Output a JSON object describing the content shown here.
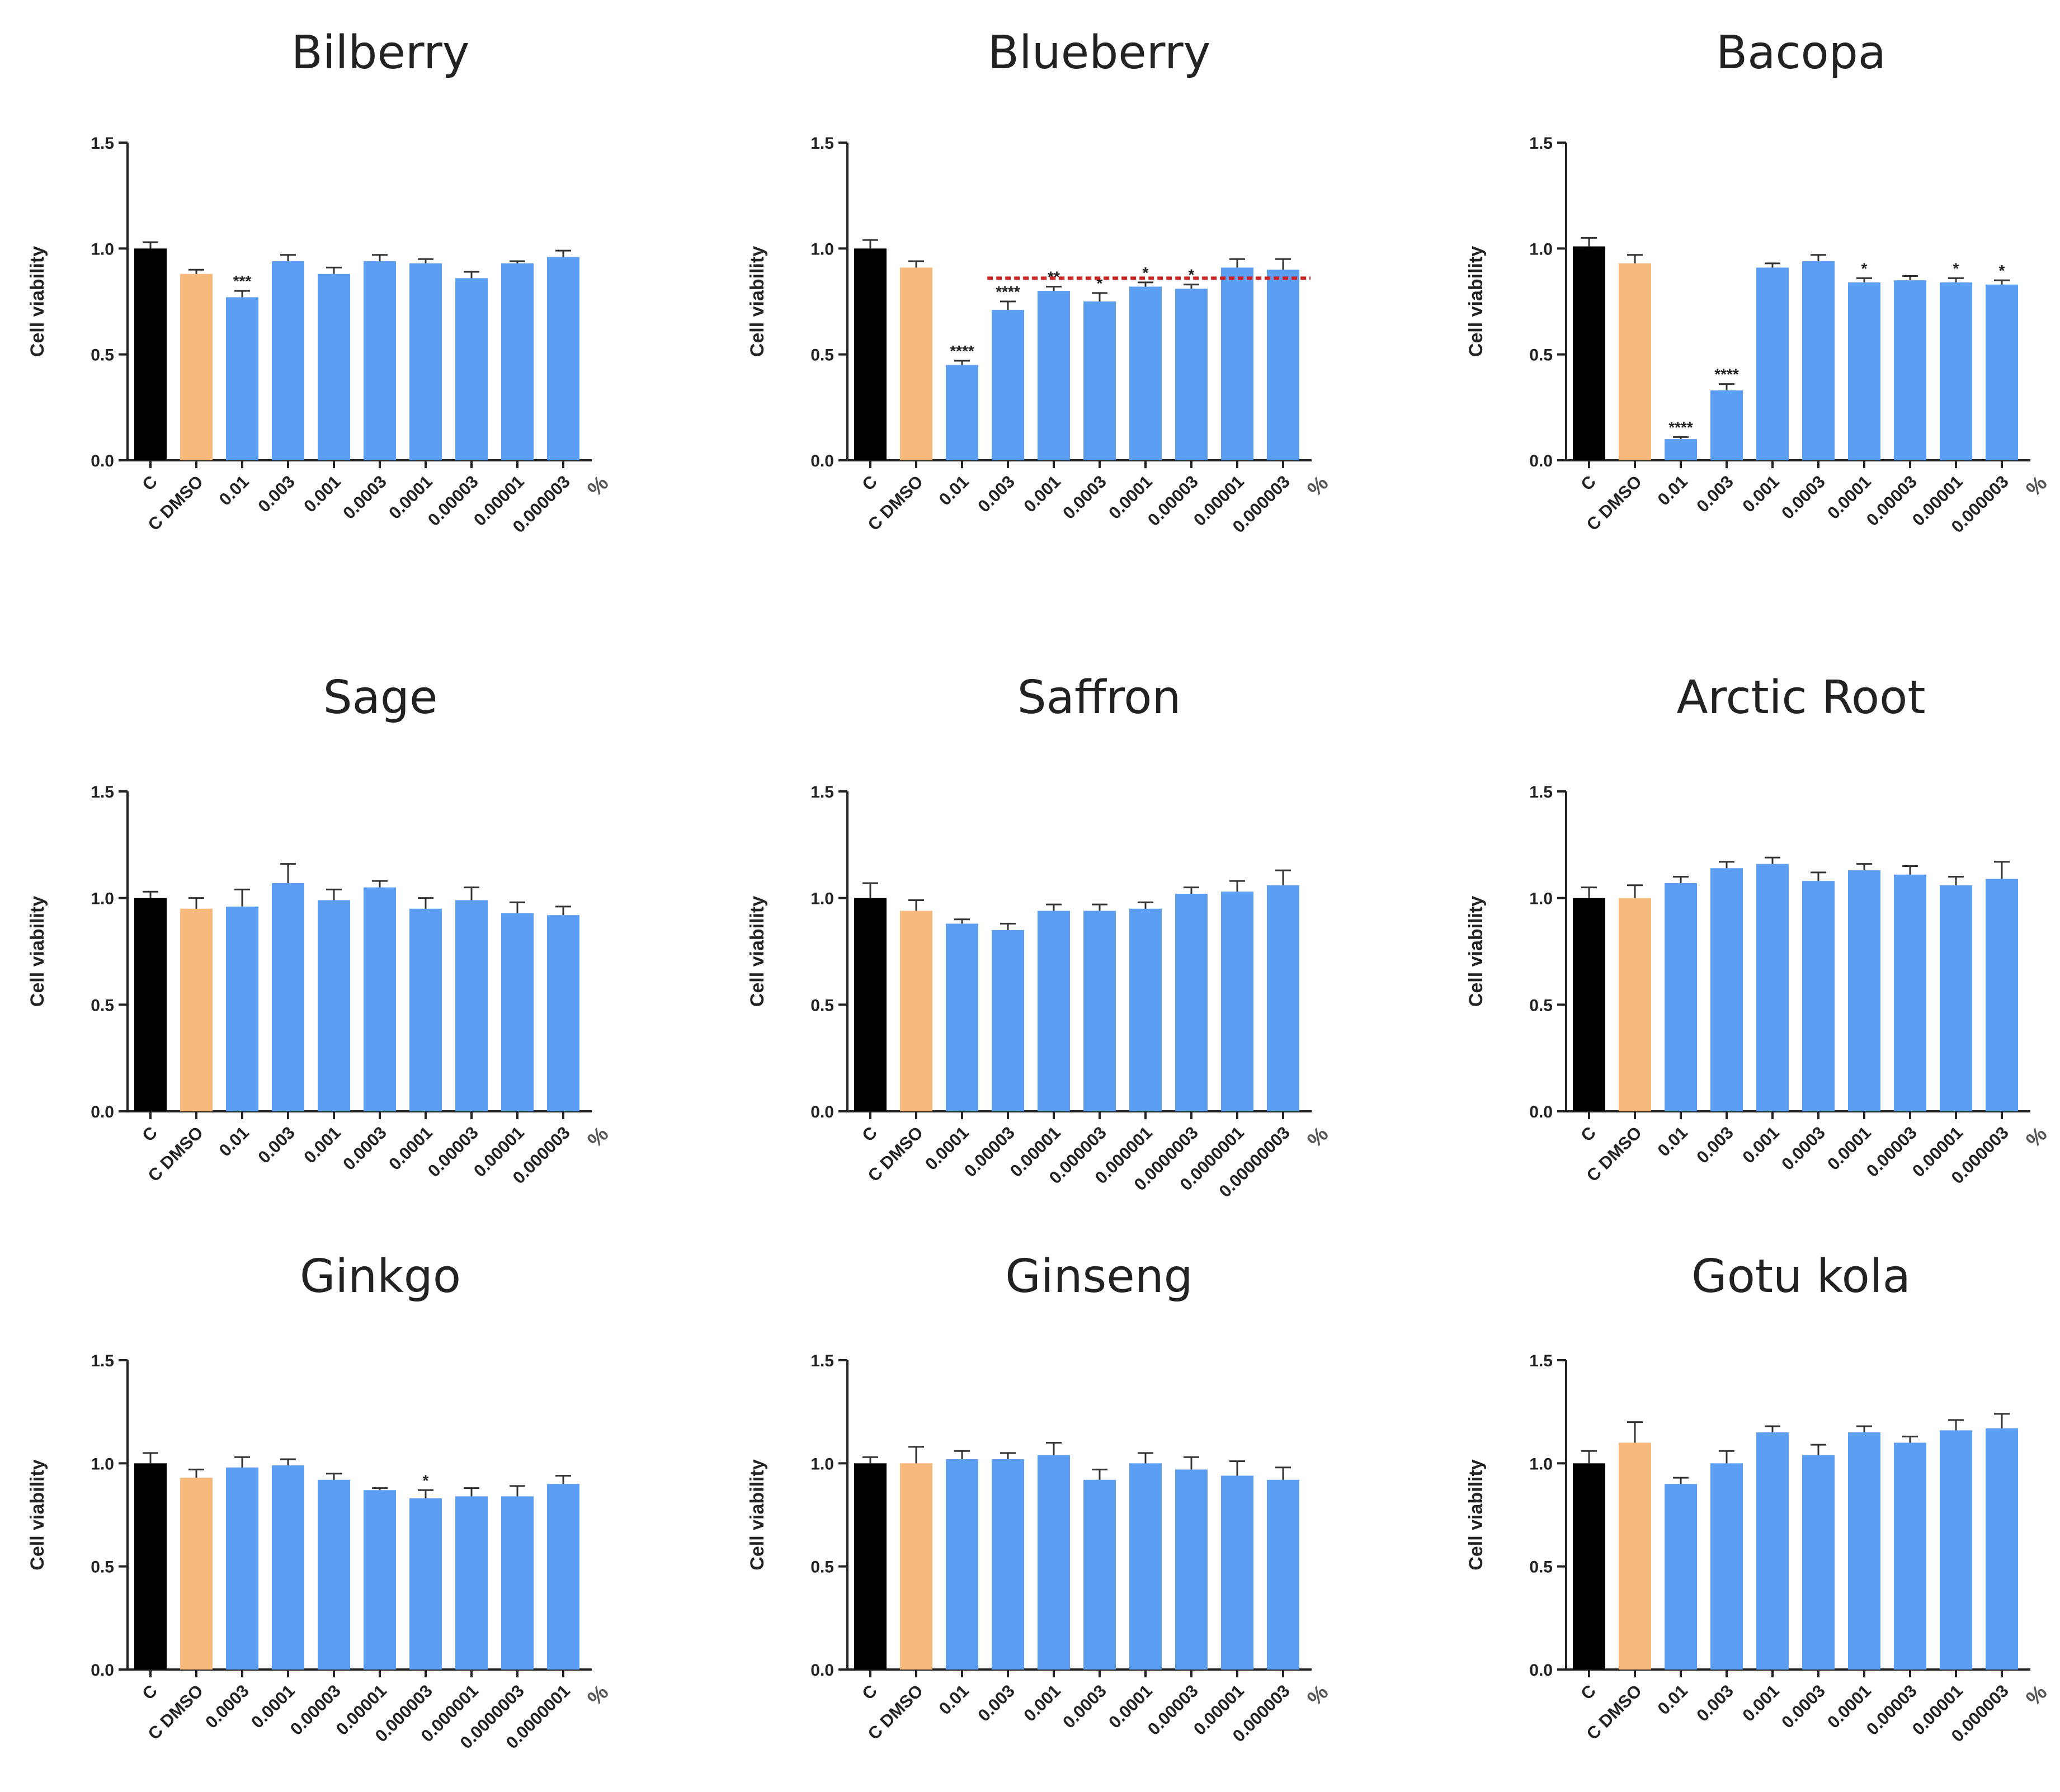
{
  "colors": {
    "control": "#000000",
    "dmso": "#f7b97c",
    "treatment": "#5b9ef2",
    "reference_line": "#cc2222",
    "axis": "#222222"
  },
  "chart_data": [
    {
      "type": "bar",
      "title": "Bilberry",
      "ylabel": "Cell viability",
      "unit": "%",
      "ylim": [
        0,
        1.5
      ],
      "yticks": [
        "0.0",
        "0.5",
        "1.0",
        "1.5"
      ],
      "categories": [
        "C",
        "C DMSO",
        "0.01",
        "0.003",
        "0.001",
        "0.0003",
        "0.0001",
        "0.00003",
        "0.00001",
        "0.000003"
      ],
      "values": [
        1.0,
        0.88,
        0.77,
        0.94,
        0.88,
        0.94,
        0.93,
        0.86,
        0.93,
        0.96
      ],
      "errors": [
        0.03,
        0.02,
        0.03,
        0.03,
        0.03,
        0.03,
        0.02,
        0.03,
        0.01,
        0.03
      ],
      "significance": [
        "",
        "",
        "***",
        "",
        "",
        "",
        "",
        "",
        "",
        ""
      ],
      "reference_line": null
    },
    {
      "type": "bar",
      "title": "Blueberry",
      "ylabel": "Cell viability",
      "unit": "%",
      "ylim": [
        0,
        1.5
      ],
      "yticks": [
        "0.0",
        "0.5",
        "1.0",
        "1.5"
      ],
      "categories": [
        "C",
        "C DMSO",
        "0.01",
        "0.003",
        "0.001",
        "0.0003",
        "0.0001",
        "0.00003",
        "0.00001",
        "0.000003"
      ],
      "values": [
        1.0,
        0.91,
        0.45,
        0.71,
        0.8,
        0.75,
        0.82,
        0.81,
        0.91,
        0.9
      ],
      "errors": [
        0.04,
        0.03,
        0.02,
        0.04,
        0.02,
        0.04,
        0.02,
        0.02,
        0.04,
        0.05
      ],
      "significance": [
        "",
        "",
        "****",
        "****",
        "**",
        "*",
        "*",
        "*",
        "",
        ""
      ],
      "reference_line": 0.86
    },
    {
      "type": "bar",
      "title": "Bacopa",
      "ylabel": "Cell viability",
      "unit": "%",
      "ylim": [
        0,
        1.5
      ],
      "yticks": [
        "0.0",
        "0.5",
        "1.0",
        "1.5"
      ],
      "categories": [
        "C",
        "C DMSO",
        "0.01",
        "0.003",
        "0.001",
        "0.0003",
        "0.0001",
        "0.00003",
        "0.00001",
        "0.000003"
      ],
      "values": [
        1.01,
        0.93,
        0.1,
        0.33,
        0.91,
        0.94,
        0.84,
        0.85,
        0.84,
        0.83
      ],
      "errors": [
        0.04,
        0.04,
        0.01,
        0.03,
        0.02,
        0.03,
        0.02,
        0.02,
        0.02,
        0.02
      ],
      "significance": [
        "",
        "",
        "****",
        "****",
        "",
        "",
        "*",
        "",
        "*",
        "*"
      ],
      "reference_line": null
    },
    {
      "type": "bar",
      "title": "Sage",
      "ylabel": "Cell viability",
      "unit": "%",
      "ylim": [
        0,
        1.5
      ],
      "yticks": [
        "0.0",
        "0.5",
        "1.0",
        "1.5"
      ],
      "categories": [
        "C",
        "C DMSO",
        "0.01",
        "0.003",
        "0.001",
        "0.0003",
        "0.0001",
        "0.00003",
        "0.00001",
        "0.000003"
      ],
      "values": [
        1.0,
        0.95,
        0.96,
        1.07,
        0.99,
        1.05,
        0.95,
        0.99,
        0.93,
        0.92
      ],
      "errors": [
        0.03,
        0.05,
        0.08,
        0.09,
        0.05,
        0.03,
        0.05,
        0.06,
        0.05,
        0.04
      ],
      "significance": [
        "",
        "",
        "",
        "",
        "",
        "",
        "",
        "",
        "",
        ""
      ],
      "reference_line": null
    },
    {
      "type": "bar",
      "title": "Saffron",
      "ylabel": "Cell viability",
      "unit": "%",
      "ylim": [
        0,
        1.5
      ],
      "yticks": [
        "0.0",
        "0.5",
        "1.0",
        "1.5"
      ],
      "categories": [
        "C",
        "C DMSO",
        "0.0001",
        "0.00003",
        "0.00001",
        "0.000003",
        "0.000001",
        "0.0000003",
        "0.0000001",
        "0.00000003"
      ],
      "values": [
        1.0,
        0.94,
        0.88,
        0.85,
        0.94,
        0.94,
        0.95,
        1.02,
        1.03,
        1.06
      ],
      "errors": [
        0.07,
        0.05,
        0.02,
        0.03,
        0.03,
        0.03,
        0.03,
        0.03,
        0.05,
        0.07
      ],
      "significance": [
        "",
        "",
        "",
        "",
        "",
        "",
        "",
        "",
        "",
        ""
      ],
      "reference_line": null
    },
    {
      "type": "bar",
      "title": "Arctic Root",
      "ylabel": "Cell viability",
      "unit": "%",
      "ylim": [
        0,
        1.5
      ],
      "yticks": [
        "0.0",
        "0.5",
        "1.0",
        "1.5"
      ],
      "categories": [
        "C",
        "C DMSO",
        "0.01",
        "0.003",
        "0.001",
        "0.0003",
        "0.0001",
        "0.00003",
        "0.00001",
        "0.000003"
      ],
      "values": [
        1.0,
        1.0,
        1.07,
        1.14,
        1.16,
        1.08,
        1.13,
        1.11,
        1.06,
        1.09
      ],
      "errors": [
        0.05,
        0.06,
        0.03,
        0.03,
        0.03,
        0.04,
        0.03,
        0.04,
        0.04,
        0.08
      ],
      "significance": [
        "",
        "",
        "",
        "",
        "",
        "",
        "",
        "",
        "",
        ""
      ],
      "reference_line": null
    },
    {
      "type": "bar",
      "title": "Ginkgo",
      "ylabel": "Cell viability",
      "unit": "%",
      "ylim": [
        0,
        1.5
      ],
      "yticks": [
        "0.0",
        "0.5",
        "1.0",
        "1.5"
      ],
      "categories": [
        "C",
        "C DMSO",
        "0.0003",
        "0.0001",
        "0.00003",
        "0.00001",
        "0.000003",
        "0.000001",
        "0.0000003",
        "0.0000001"
      ],
      "values": [
        1.0,
        0.93,
        0.98,
        0.99,
        0.92,
        0.87,
        0.83,
        0.84,
        0.84,
        0.9
      ],
      "errors": [
        0.05,
        0.04,
        0.05,
        0.03,
        0.03,
        0.01,
        0.04,
        0.04,
        0.05,
        0.04
      ],
      "significance": [
        "",
        "",
        "",
        "",
        "",
        "",
        "*",
        "",
        "",
        ""
      ],
      "reference_line": null
    },
    {
      "type": "bar",
      "title": "Ginseng",
      "ylabel": "Cell viability",
      "unit": "%",
      "ylim": [
        0,
        1.5
      ],
      "yticks": [
        "0.0",
        "0.5",
        "1.0",
        "1.5"
      ],
      "categories": [
        "C",
        "C DMSO",
        "0.01",
        "0.003",
        "0.001",
        "0.0003",
        "0.0001",
        "0.00003",
        "0.00001",
        "0.000003"
      ],
      "values": [
        1.0,
        1.0,
        1.02,
        1.02,
        1.04,
        0.92,
        1.0,
        0.97,
        0.94,
        0.92
      ],
      "errors": [
        0.03,
        0.08,
        0.04,
        0.03,
        0.06,
        0.05,
        0.05,
        0.06,
        0.07,
        0.06
      ],
      "significance": [
        "",
        "",
        "",
        "",
        "",
        "",
        "",
        "",
        "",
        ""
      ],
      "reference_line": null
    },
    {
      "type": "bar",
      "title": "Gotu kola",
      "ylabel": "Cell viability",
      "unit": "%",
      "ylim": [
        0,
        1.5
      ],
      "yticks": [
        "0.0",
        "0.5",
        "1.0",
        "1.5"
      ],
      "categories": [
        "C",
        "C DMSO",
        "0.01",
        "0.003",
        "0.001",
        "0.0003",
        "0.0001",
        "0.00003",
        "0.00001",
        "0.000003"
      ],
      "values": [
        1.0,
        1.1,
        0.9,
        1.0,
        1.15,
        1.04,
        1.15,
        1.1,
        1.16,
        1.17
      ],
      "errors": [
        0.06,
        0.1,
        0.03,
        0.06,
        0.03,
        0.05,
        0.03,
        0.03,
        0.05,
        0.07
      ],
      "significance": [
        "",
        "",
        "",
        "",
        "",
        "",
        "",
        "",
        "",
        ""
      ],
      "reference_line": null
    }
  ]
}
